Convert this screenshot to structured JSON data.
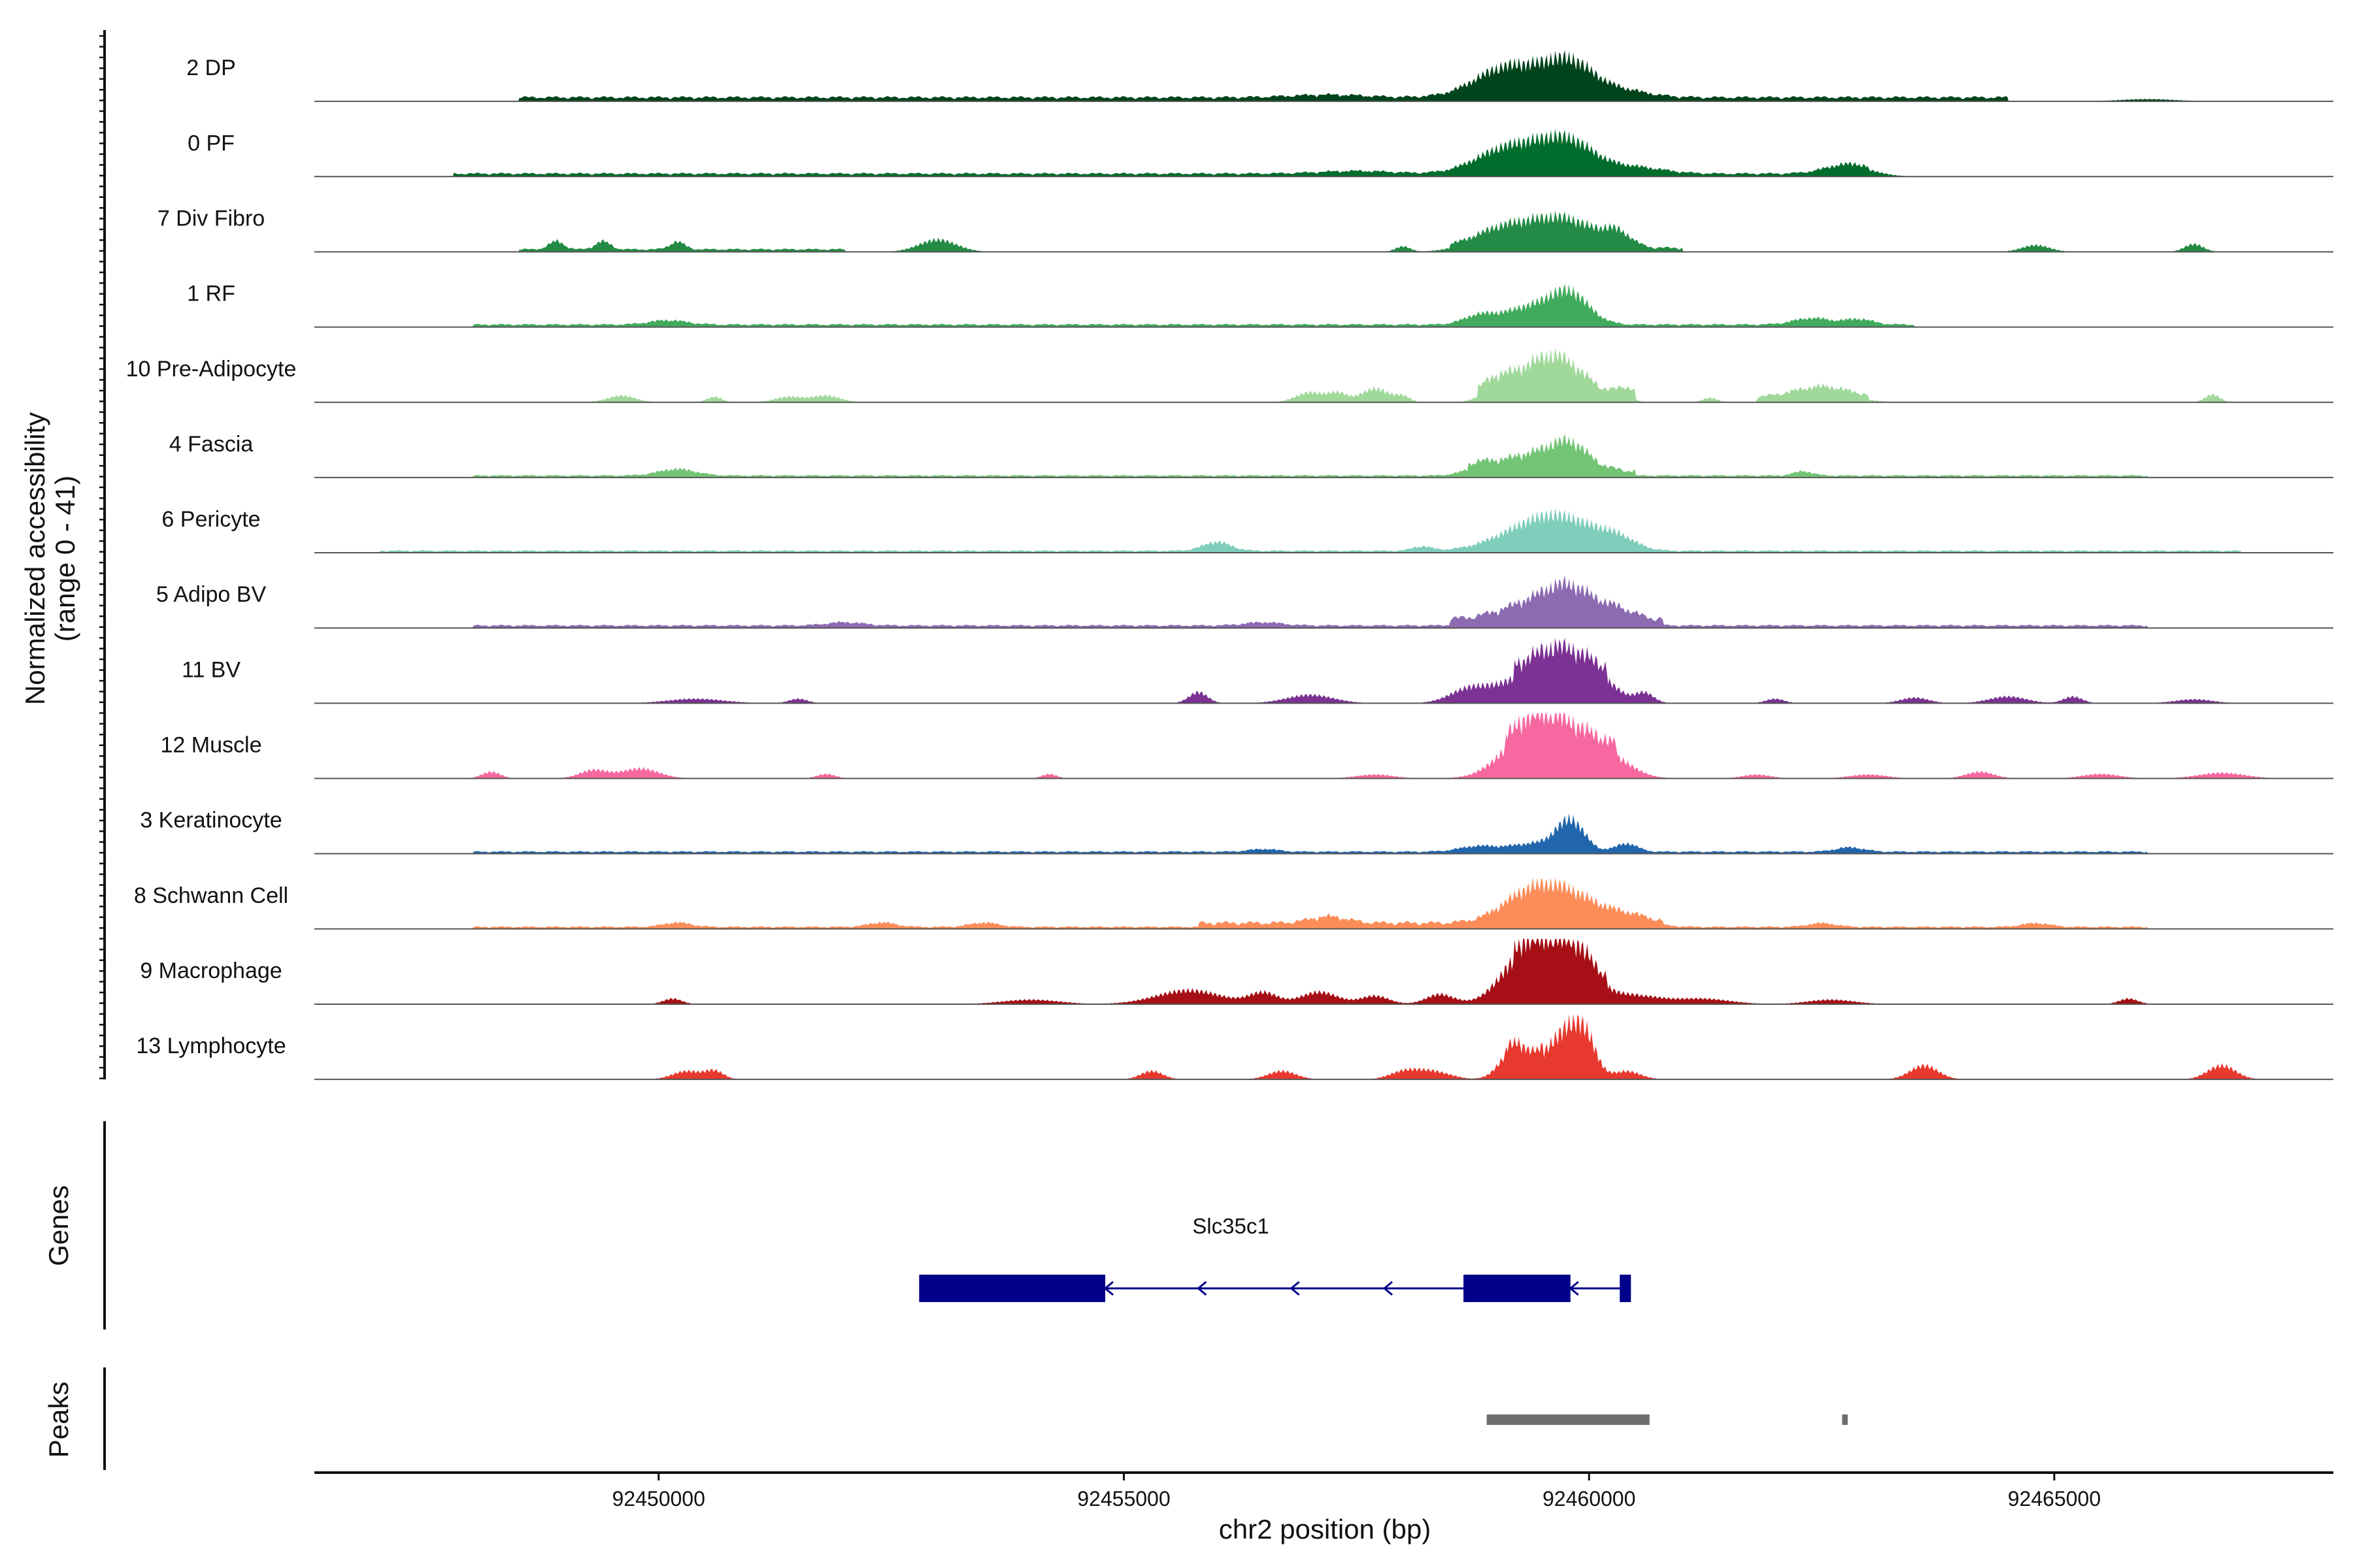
{
  "chart_data": {
    "type": "area",
    "title": "",
    "ylabel_line1": "Normalized accessibility",
    "ylabel_line2": "(range 0 - 41)",
    "yrange": [
      0,
      41
    ],
    "xlabel": "chr2 position (bp)",
    "xlim": [
      92446300,
      92468000
    ],
    "xticks": [
      92450000,
      92455000,
      92460000,
      92465000
    ],
    "tracks": [
      {
        "name": "2 DP",
        "color": "#00441b",
        "baseline": [
          [
            92448500,
            92464500,
            0.08
          ]
        ],
        "peaks": [
          [
            92459350,
            450,
            0.38
          ],
          [
            92459800,
            250,
            0.45
          ],
          [
            92459050,
            300,
            0.25
          ],
          [
            92460350,
            300,
            0.12
          ],
          [
            92457200,
            400,
            0.05
          ],
          [
            92466000,
            300,
            0.04
          ]
        ]
      },
      {
        "name": "0 PF",
        "color": "#006d2c",
        "baseline": [
          [
            92447800,
            92463000,
            0.06
          ]
        ],
        "peaks": [
          [
            92459350,
            380,
            0.38
          ],
          [
            92459800,
            280,
            0.45
          ],
          [
            92459000,
            300,
            0.2
          ],
          [
            92460500,
            300,
            0.12
          ],
          [
            92462800,
            250,
            0.18
          ],
          [
            92457500,
            400,
            0.05
          ]
        ]
      },
      {
        "name": "7 Div Fibro",
        "color": "#238b45",
        "baseline": [
          [
            92448500,
            92452000,
            0.05
          ],
          [
            92458500,
            92461000,
            0.08
          ]
        ],
        "peaks": [
          [
            92459350,
            380,
            0.3
          ],
          [
            92459800,
            300,
            0.38
          ],
          [
            92459000,
            300,
            0.18
          ],
          [
            92460300,
            150,
            0.25
          ],
          [
            92448900,
            80,
            0.15
          ],
          [
            92449400,
            80,
            0.15
          ],
          [
            92450200,
            80,
            0.14
          ],
          [
            92453000,
            200,
            0.22
          ],
          [
            92458000,
            80,
            0.1
          ],
          [
            92464800,
            150,
            0.12
          ],
          [
            92466500,
            100,
            0.14
          ]
        ]
      },
      {
        "name": "1 RF",
        "color": "#41ab5d",
        "baseline": [
          [
            92448000,
            92463500,
            0.05
          ]
        ],
        "peaks": [
          [
            92459400,
            350,
            0.33
          ],
          [
            92459800,
            200,
            0.45
          ],
          [
            92458800,
            150,
            0.12
          ],
          [
            92462400,
            200,
            0.12
          ],
          [
            92462900,
            150,
            0.1
          ],
          [
            92450100,
            200,
            0.08
          ]
        ]
      },
      {
        "name": "10 Pre-Adipocyte",
        "color": "#a1d99b",
        "baseline": [
          [
            92458800,
            92460500,
            0.18
          ],
          [
            92461800,
            92463000,
            0.1
          ]
        ],
        "peaks": [
          [
            92459350,
            250,
            0.32
          ],
          [
            92459700,
            250,
            0.55
          ],
          [
            92459000,
            150,
            0.2
          ],
          [
            92460400,
            80,
            0.12
          ],
          [
            92449600,
            150,
            0.12
          ],
          [
            92450600,
            80,
            0.1
          ],
          [
            92451400,
            150,
            0.1
          ],
          [
            92451800,
            150,
            0.12
          ],
          [
            92457000,
            150,
            0.18
          ],
          [
            92457300,
            100,
            0.16
          ],
          [
            92457700,
            150,
            0.25
          ],
          [
            92458000,
            80,
            0.1
          ],
          [
            92461300,
            80,
            0.08
          ],
          [
            92462500,
            300,
            0.2
          ],
          [
            92466700,
            80,
            0.14
          ]
        ]
      },
      {
        "name": "4 Fascia",
        "color": "#74c476",
        "baseline": [
          [
            92448000,
            92466000,
            0.04
          ],
          [
            92458700,
            92460500,
            0.1
          ]
        ],
        "peaks": [
          [
            92459400,
            350,
            0.3
          ],
          [
            92459800,
            200,
            0.38
          ],
          [
            92450200,
            200,
            0.12
          ],
          [
            92458800,
            150,
            0.1
          ],
          [
            92462300,
            100,
            0.08
          ]
        ]
      },
      {
        "name": "6 Pericyte",
        "color": "#7fcdbb",
        "baseline": [
          [
            92447000,
            92467000,
            0.04
          ]
        ],
        "peaks": [
          [
            92459400,
            400,
            0.4
          ],
          [
            92459800,
            350,
            0.36
          ],
          [
            92460300,
            200,
            0.18
          ],
          [
            92456000,
            150,
            0.16
          ],
          [
            92458200,
            100,
            0.08
          ]
        ]
      },
      {
        "name": "5 Adipo BV",
        "color": "#8c6bb1",
        "baseline": [
          [
            92448000,
            92466000,
            0.05
          ],
          [
            92458500,
            92460800,
            0.12
          ]
        ],
        "peaks": [
          [
            92459400,
            350,
            0.3
          ],
          [
            92459800,
            250,
            0.48
          ],
          [
            92460300,
            200,
            0.18
          ],
          [
            92452000,
            200,
            0.06
          ],
          [
            92456500,
            200,
            0.06
          ]
        ]
      },
      {
        "name": "11 BV",
        "color": "#7b3294",
        "baseline": [
          [
            92459200,
            92460200,
            0.25
          ]
        ],
        "peaks": [
          [
            92459400,
            400,
            0.45
          ],
          [
            92459800,
            300,
            0.5
          ],
          [
            92458700,
            200,
            0.2
          ],
          [
            92460200,
            150,
            0.15
          ],
          [
            92460600,
            100,
            0.18
          ],
          [
            92455800,
            100,
            0.2
          ],
          [
            92457000,
            250,
            0.15
          ],
          [
            92450400,
            300,
            0.08
          ],
          [
            92451500,
            100,
            0.08
          ],
          [
            92462000,
            100,
            0.08
          ],
          [
            92463500,
            150,
            0.1
          ],
          [
            92464500,
            200,
            0.12
          ],
          [
            92465200,
            100,
            0.12
          ],
          [
            92466500,
            200,
            0.07
          ]
        ]
      },
      {
        "name": "12 Muscle",
        "color": "#f768a1",
        "baseline": [
          [
            92459100,
            92460300,
            0.25
          ]
        ],
        "peaks": [
          [
            92459350,
            300,
            0.65
          ],
          [
            92459800,
            350,
            0.6
          ],
          [
            92460300,
            200,
            0.18
          ],
          [
            92448200,
            100,
            0.12
          ],
          [
            92449300,
            150,
            0.15
          ],
          [
            92449800,
            200,
            0.18
          ],
          [
            92451800,
            100,
            0.08
          ],
          [
            92454200,
            80,
            0.08
          ],
          [
            92457700,
            200,
            0.07
          ],
          [
            92461800,
            150,
            0.07
          ],
          [
            92463000,
            200,
            0.07
          ],
          [
            92464200,
            150,
            0.12
          ],
          [
            92465500,
            200,
            0.08
          ],
          [
            92466800,
            250,
            0.1
          ]
        ]
      },
      {
        "name": "3 Keratinocyte",
        "color": "#2166ac",
        "baseline": [
          [
            92448000,
            92466000,
            0.04
          ]
        ],
        "peaks": [
          [
            92459800,
            150,
            0.55
          ],
          [
            92459400,
            250,
            0.15
          ],
          [
            92458800,
            200,
            0.1
          ],
          [
            92460400,
            120,
            0.15
          ],
          [
            92462800,
            150,
            0.08
          ],
          [
            92456500,
            150,
            0.05
          ]
        ]
      },
      {
        "name": "8 Schwann Cell",
        "color": "#fc8d59",
        "baseline": [
          [
            92448000,
            92466000,
            0.04
          ],
          [
            92455800,
            92460800,
            0.08
          ]
        ],
        "peaks": [
          [
            92459350,
            300,
            0.5
          ],
          [
            92459800,
            300,
            0.45
          ],
          [
            92460400,
            250,
            0.15
          ],
          [
            92457200,
            200,
            0.12
          ],
          [
            92450200,
            150,
            0.08
          ],
          [
            92452400,
            150,
            0.08
          ],
          [
            92453500,
            150,
            0.08
          ],
          [
            92462500,
            150,
            0.07
          ],
          [
            92464800,
            150,
            0.07
          ]
        ]
      },
      {
        "name": "9 Macrophage",
        "color": "#a50f15",
        "baseline": [
          [
            92459200,
            92460200,
            0.2
          ]
        ],
        "peaks": [
          [
            92459300,
            250,
            0.85
          ],
          [
            92459800,
            250,
            0.9
          ],
          [
            92455700,
            350,
            0.25
          ],
          [
            92456500,
            150,
            0.2
          ],
          [
            92457100,
            200,
            0.22
          ],
          [
            92457700,
            150,
            0.15
          ],
          [
            92458400,
            150,
            0.18
          ],
          [
            92450150,
            100,
            0.1
          ],
          [
            92454000,
            300,
            0.08
          ],
          [
            92460500,
            250,
            0.15
          ],
          [
            92461200,
            300,
            0.1
          ],
          [
            92462600,
            250,
            0.08
          ],
          [
            92465800,
            100,
            0.1
          ]
        ]
      },
      {
        "name": "13 Lymphocyte",
        "color": "#e8392f",
        "baseline": [
          [
            92459100,
            92459500,
            0.12
          ]
        ],
        "peaks": [
          [
            92459200,
            150,
            0.55
          ],
          [
            92459850,
            150,
            0.85
          ],
          [
            92459600,
            150,
            0.45
          ],
          [
            92450300,
            150,
            0.15
          ],
          [
            92450600,
            100,
            0.15
          ],
          [
            92455300,
            120,
            0.15
          ],
          [
            92456700,
            150,
            0.15
          ],
          [
            92458000,
            150,
            0.12
          ],
          [
            92458300,
            200,
            0.15
          ],
          [
            92460400,
            150,
            0.15
          ],
          [
            92460000,
            100,
            0.3
          ],
          [
            92463600,
            150,
            0.25
          ],
          [
            92466800,
            150,
            0.25
          ]
        ]
      }
    ],
    "genes_label": "Genes",
    "gene": {
      "name": "Slc35c1",
      "start": 92452800,
      "end": 92460450,
      "strand": "-",
      "exons": [
        [
          92452800,
          92454800
        ],
        [
          92458650,
          92459800
        ],
        [
          92460330,
          92460450
        ]
      ],
      "arrows": [
        92454800,
        92455800,
        92456800,
        92457800,
        92459800
      ]
    },
    "peaks_label": "Peaks",
    "peak_regions": [
      [
        92458900,
        92460650
      ],
      [
        92462720,
        92462780
      ]
    ]
  }
}
